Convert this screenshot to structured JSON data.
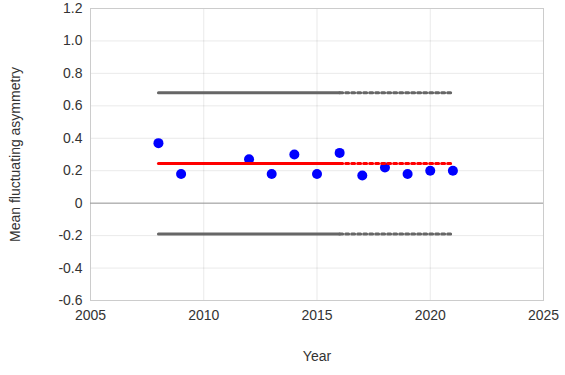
{
  "chart_data": {
    "type": "scatter",
    "x_label": "Year",
    "y_label": "Mean fluctuating asymmetry",
    "xlim": [
      2005,
      2025
    ],
    "xticks": [
      2005,
      2010,
      2015,
      2020,
      2025
    ],
    "ylim": [
      -0.6,
      1.2
    ],
    "yticks": [
      -0.6,
      -0.4,
      -0.2,
      0,
      0.2,
      0.4,
      0.6,
      0.8,
      {
        "value": 1,
        "label": "1.0"
      },
      1.2
    ],
    "grid": true,
    "series": [
      {
        "type": "scatter",
        "marker": "circle",
        "color": "#0000ff",
        "x": [
          2008,
          2009,
          2012,
          2013,
          2014,
          2015,
          2016,
          2017,
          2018,
          2019,
          2020,
          2021
        ],
        "values": [
          0.37,
          0.18,
          0.27,
          0.18,
          0.3,
          0.18,
          0.31,
          0.17,
          0.22,
          0.18,
          0.2,
          0.2
        ]
      },
      {
        "type": "line",
        "line_style": "solid",
        "color": "#ff0000",
        "x": [
          2008,
          2016
        ],
        "values": [
          0.245,
          0.245
        ]
      },
      {
        "type": "line",
        "line_style": "dotted",
        "color": "#ff0000",
        "x": [
          2016,
          2021
        ],
        "values": [
          0.245,
          0.245
        ]
      },
      {
        "type": "line",
        "line_style": "solid",
        "color": "#666666",
        "x": [
          2008,
          2016
        ],
        "values": [
          0.68,
          0.68
        ]
      },
      {
        "type": "line",
        "line_style": "dotted",
        "color": "#666666",
        "x": [
          2016,
          2021
        ],
        "values": [
          0.68,
          0.68
        ]
      },
      {
        "type": "line",
        "line_style": "solid",
        "color": "#666666",
        "x": [
          2008,
          2016
        ],
        "values": [
          -0.19,
          -0.19
        ]
      },
      {
        "type": "line",
        "line_style": "dotted",
        "color": "#666666",
        "x": [
          2016,
          2021
        ],
        "values": [
          -0.19,
          -0.19
        ]
      }
    ]
  }
}
